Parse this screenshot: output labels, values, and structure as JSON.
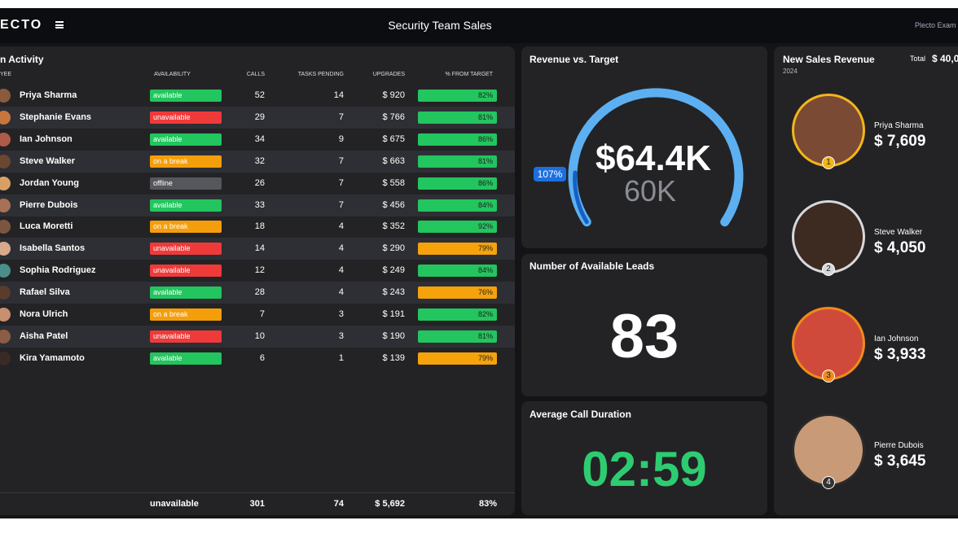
{
  "header": {
    "logo": "ECTO",
    "title": "Security Team Sales",
    "account": "Plecto Exam"
  },
  "activity": {
    "title": "n Activity",
    "columns": [
      "YEE",
      "AVAILABILITY",
      "CALLS",
      "TASKS PENDING",
      "UPGRADES",
      "% FROM TARGET"
    ],
    "rows": [
      {
        "employee": "Priya Sharma",
        "availability": "available",
        "availability_color": "#22c55e",
        "calls": 52,
        "tasks_pending": 14,
        "upgrades": "$ 920",
        "from_target": "82%",
        "target_color": "#22c55e"
      },
      {
        "employee": "Stephanie Evans",
        "availability": "unavailable",
        "availability_color": "#ef3a3a",
        "calls": 29,
        "tasks_pending": 7,
        "upgrades": "$ 766",
        "from_target": "81%",
        "target_color": "#22c55e"
      },
      {
        "employee": "Ian Johnson",
        "availability": "available",
        "availability_color": "#22c55e",
        "calls": 34,
        "tasks_pending": 9,
        "upgrades": "$ 675",
        "from_target": "86%",
        "target_color": "#22c55e"
      },
      {
        "employee": "Steve Walker",
        "availability": "on a break",
        "availability_color": "#f59e0b",
        "calls": 32,
        "tasks_pending": 7,
        "upgrades": "$ 663",
        "from_target": "81%",
        "target_color": "#22c55e"
      },
      {
        "employee": "Jordan Young",
        "availability": "offline",
        "availability_color": "#55575c",
        "calls": 26,
        "tasks_pending": 7,
        "upgrades": "$ 558",
        "from_target": "86%",
        "target_color": "#22c55e"
      },
      {
        "employee": "Pierre Dubois",
        "availability": "available",
        "availability_color": "#22c55e",
        "calls": 33,
        "tasks_pending": 7,
        "upgrades": "$ 456",
        "from_target": "84%",
        "target_color": "#22c55e"
      },
      {
        "employee": "Luca Moretti",
        "availability": "on a break",
        "availability_color": "#f59e0b",
        "calls": 18,
        "tasks_pending": 4,
        "upgrades": "$ 352",
        "from_target": "92%",
        "target_color": "#22c55e"
      },
      {
        "employee": "Isabella Santos",
        "availability": "unavailable",
        "availability_color": "#ef3a3a",
        "calls": 14,
        "tasks_pending": 4,
        "upgrades": "$ 290",
        "from_target": "79%",
        "target_color": "#f5a20b"
      },
      {
        "employee": "Sophia Rodriguez",
        "availability": "unavailable",
        "availability_color": "#ef3a3a",
        "calls": 12,
        "tasks_pending": 4,
        "upgrades": "$ 249",
        "from_target": "84%",
        "target_color": "#22c55e"
      },
      {
        "employee": "Rafael Silva",
        "availability": "available",
        "availability_color": "#22c55e",
        "calls": 28,
        "tasks_pending": 4,
        "upgrades": "$ 243",
        "from_target": "76%",
        "target_color": "#f5a20b"
      },
      {
        "employee": "Nora Ulrich",
        "availability": "on a break",
        "availability_color": "#f59e0b",
        "calls": 7,
        "tasks_pending": 3,
        "upgrades": "$ 191",
        "from_target": "82%",
        "target_color": "#22c55e"
      },
      {
        "employee": "Aisha Patel",
        "availability": "unavailable",
        "availability_color": "#ef3a3a",
        "calls": 10,
        "tasks_pending": 3,
        "upgrades": "$ 190",
        "from_target": "81%",
        "target_color": "#22c55e"
      },
      {
        "employee": "Kira Yamamoto",
        "availability": "available",
        "availability_color": "#22c55e",
        "calls": 6,
        "tasks_pending": 1,
        "upgrades": "$ 139",
        "from_target": "79%",
        "target_color": "#f5a20b"
      }
    ],
    "footer": {
      "availability": "unavailable",
      "calls": 301,
      "tasks_pending": 74,
      "upgrades": "$ 5,692",
      "from_target": "83%"
    }
  },
  "revenue": {
    "title": "Revenue vs. Target",
    "value": "$64.4K",
    "target": "60K",
    "percent": "107%"
  },
  "leads": {
    "title": "Number of Available Leads",
    "value": 83
  },
  "call_duration": {
    "title": "Average Call Duration",
    "value": "02:59"
  },
  "new_sales": {
    "title": "New Sales Revenue",
    "year": "2024",
    "total_label": "Total",
    "total": "$ 40,0",
    "leaders": [
      {
        "name": "Priya Sharma",
        "amount": "$ 7,609",
        "rank": 1,
        "ring": "#f2b619"
      },
      {
        "name": "Steve Walker",
        "amount": "$ 4,050",
        "rank": 2,
        "ring": "#d6d8dc"
      },
      {
        "name": "Ian Johnson",
        "amount": "$ 3,933",
        "rank": 3,
        "ring": "#f08a1c"
      },
      {
        "name": "Pierre Dubois",
        "amount": "$ 3,645",
        "rank": 4,
        "ring": "#2a2a2a"
      }
    ]
  }
}
